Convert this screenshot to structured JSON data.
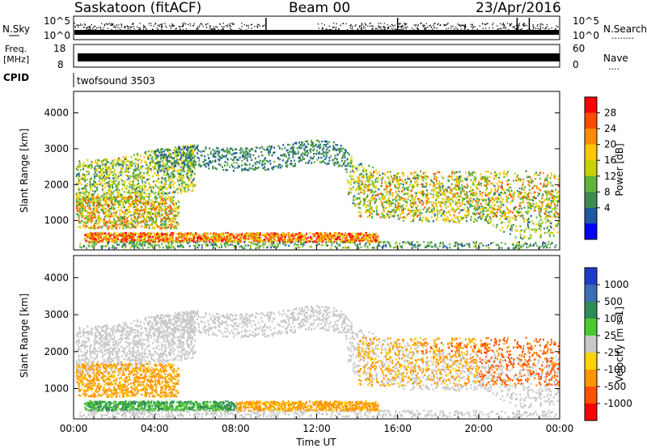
{
  "header": {
    "station": "Saskatoon (fitACF)",
    "beam": "Beam 00",
    "date": "23/Apr/2016"
  },
  "nsky_panel": {
    "left_label": "N.Sky",
    "right_label": "N.Search",
    "right_label_dots": "........",
    "left_ticks": [
      "10^5",
      "10^0"
    ],
    "right_ticks": [
      "10^5",
      "10^0"
    ]
  },
  "freq_panel": {
    "left_label_line1": "Freq.",
    "left_label_line2": "[MHz]",
    "right_label": "Nave",
    "right_label_dots": "....",
    "left_ticks": [
      "18",
      "8"
    ],
    "right_ticks": [
      "60",
      "0"
    ]
  },
  "cpid_panel": {
    "label": "CPID",
    "program": "twofsound 3503"
  },
  "chart_data": [
    {
      "type": "heatmap",
      "name": "power",
      "ylabel": "Slant Range [km]",
      "ylim": [
        180,
        4600
      ],
      "yticks": [
        "4000",
        "3000",
        "2000",
        "1000"
      ],
      "xlim": [
        0,
        24
      ],
      "xticks": [
        "00:00",
        "04:00",
        "08:00",
        "12:00",
        "16:00",
        "20:00",
        "00:00"
      ],
      "colorbar": {
        "label": "Power [dB]",
        "ticks": [
          "28",
          "24",
          "20",
          "16",
          "12",
          "8",
          "4"
        ],
        "colors": [
          "#ff0000",
          "#ff4a00",
          "#ff8c00",
          "#ffc800",
          "#c8d200",
          "#5fb43c",
          "#3c8c50",
          "#1e5aa0",
          "#0000ff"
        ]
      }
    },
    {
      "type": "heatmap",
      "name": "velocity",
      "ylabel": "Slant Range [km]",
      "ylim": [
        180,
        4600
      ],
      "yticks": [
        "4000",
        "3000",
        "2000",
        "1000"
      ],
      "xlim": [
        0,
        24
      ],
      "xticks": [
        "00:00",
        "04:00",
        "08:00",
        "12:00",
        "16:00",
        "20:00",
        "00:00"
      ],
      "xlabel": "Time UT",
      "colorbar": {
        "label": "Velocity [m s-1]",
        "ticks": [
          "1000",
          "500",
          "100",
          "25",
          "-25",
          "-100",
          "-500",
          "-1000"
        ],
        "colors": [
          "#1e3cc8",
          "#3c6eb4",
          "#2e8b57",
          "#4cc832",
          "#c8c8c8",
          "#ffd200",
          "#ff9600",
          "#ff5000",
          "#ff0000"
        ]
      }
    }
  ]
}
